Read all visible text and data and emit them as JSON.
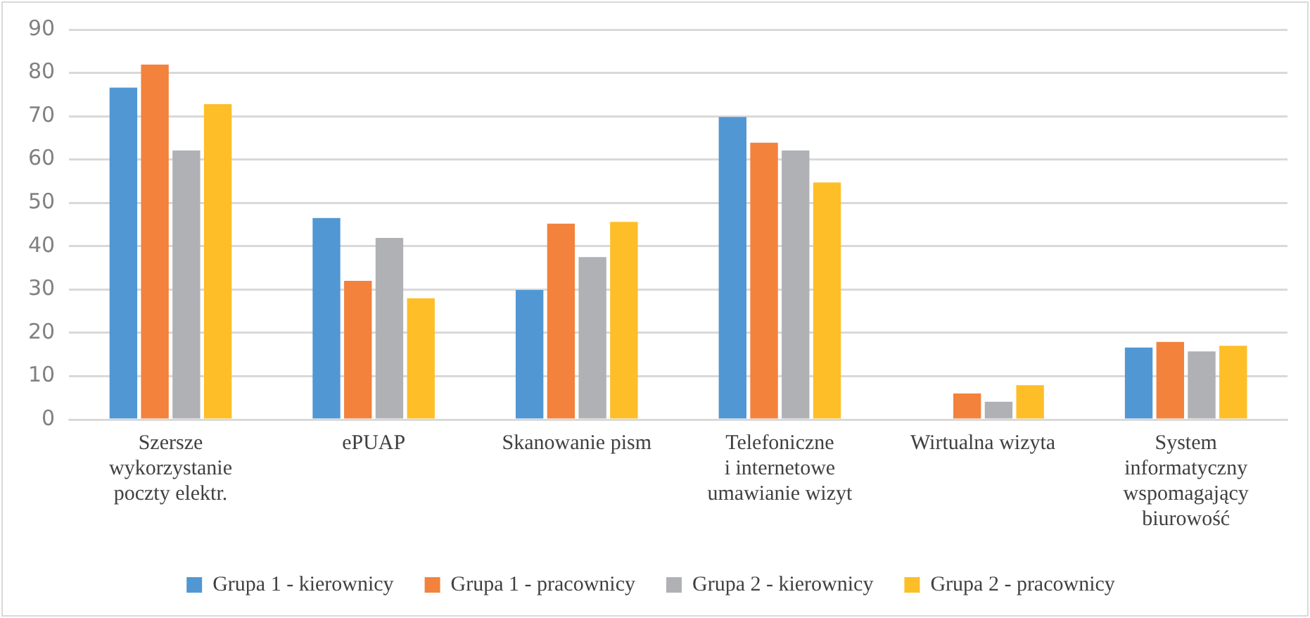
{
  "chart_data": {
    "type": "bar",
    "categories": [
      "Szersze\nwykorzystanie\npoczty elektr.",
      "ePUAP",
      "Skanowanie pism",
      "Telefoniczne\ni internetowe\numawianie wizyt",
      "Wirtualna wizyta",
      "System\ninformatyczny\nwspomagający\nbiurowość"
    ],
    "series": [
      {
        "name": "Grupa 1 - kierownicy",
        "color": "#5097d3",
        "values": [
          76.6,
          46.5,
          29.9,
          69.8,
          0,
          16.6
        ]
      },
      {
        "name": "Grupa 1 - pracownicy",
        "color": "#f2823c",
        "values": [
          81.9,
          32,
          45.2,
          63.9,
          6,
          17.9
        ]
      },
      {
        "name": "Grupa 2 - kierownicy",
        "color": "#b0b1b4",
        "values": [
          62.1,
          41.9,
          37.5,
          62.1,
          4.1,
          15.7
        ]
      },
      {
        "name": "Grupa 2 - pracownicy",
        "color": "#fdbe28",
        "values": [
          72.8,
          28,
          45.6,
          54.7,
          7.9,
          17
        ]
      }
    ],
    "ylim": [
      0,
      90
    ],
    "yticks": [
      0,
      10,
      20,
      30,
      40,
      50,
      60,
      70,
      80,
      90
    ],
    "grid": "y",
    "legend": "bottom"
  }
}
